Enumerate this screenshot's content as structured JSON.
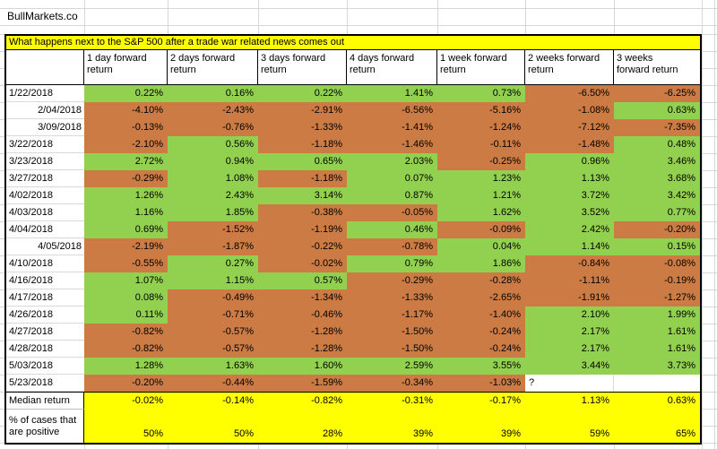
{
  "brand": "BullMarkets.co",
  "title": "What happens next to the S&P 500 after a trade war related news comes out",
  "colors": {
    "positive_green": "#92D050",
    "negative_orange": "#CB7B43",
    "highlight_yellow": "#FFFF00"
  },
  "table": {
    "columns": [
      "1 day forward\nreturn",
      "2 days forward\nreturn",
      "3 days forward\nreturn",
      "4 days forward\nreturn",
      "1 week forward\nreturn",
      "2 weeks forward\nreturn",
      "3 weeks\nforward return"
    ],
    "rows": [
      {
        "date": "1/22/2018",
        "align": "left",
        "values": [
          "0.22%",
          "0.16%",
          "0.22%",
          "1.41%",
          "0.73%",
          "-6.50%",
          "-6.25%"
        ],
        "colors": "GGGGGOO"
      },
      {
        "date": "2/04/2018",
        "align": "right",
        "values": [
          "-4.10%",
          "-2.43%",
          "-2.91%",
          "-6.56%",
          "-5.16%",
          "-1.08%",
          "0.63%"
        ],
        "colors": "OOOOOOG"
      },
      {
        "date": "3/09/2018",
        "align": "right",
        "values": [
          "-0.13%",
          "-0.76%",
          "-1.33%",
          "-1.41%",
          "-1.24%",
          "-7.12%",
          "-7.35%"
        ],
        "colors": "OOOOOOO"
      },
      {
        "date": "3/22/2018",
        "align": "left",
        "values": [
          "-2.10%",
          "0.56%",
          "-1.18%",
          "-1.46%",
          "-0.11%",
          "-1.48%",
          "0.48%"
        ],
        "colors": "OGOOOOG"
      },
      {
        "date": "3/23/2018",
        "align": "left",
        "values": [
          "2.72%",
          "0.94%",
          "0.65%",
          "2.03%",
          "-0.25%",
          "0.96%",
          "3.46%"
        ],
        "colors": "GGGGOGG"
      },
      {
        "date": "3/27/2018",
        "align": "left",
        "values": [
          "-0.29%",
          "1.08%",
          "-1.18%",
          "0.07%",
          "1.23%",
          "1.13%",
          "3.68%"
        ],
        "colors": "OGOGGGG"
      },
      {
        "date": "4/02/2018",
        "align": "left",
        "values": [
          "1.26%",
          "2.43%",
          "3.14%",
          "0.87%",
          "1.21%",
          "3.72%",
          "3.42%"
        ],
        "colors": "GGGGGGG"
      },
      {
        "date": "4/03/2018",
        "align": "left",
        "values": [
          "1.16%",
          "1.85%",
          "-0.38%",
          "-0.05%",
          "1.62%",
          "3.52%",
          "0.77%"
        ],
        "colors": "GGOOGGG"
      },
      {
        "date": "4/04/2018",
        "align": "left",
        "values": [
          "0.69%",
          "-1.52%",
          "-1.19%",
          "0.46%",
          "-0.09%",
          "2.42%",
          "-0.20%"
        ],
        "colors": "GOOGOGO"
      },
      {
        "date": "4/05/2018",
        "align": "right",
        "values": [
          "-2.19%",
          "-1.87%",
          "-0.22%",
          "-0.78%",
          "0.04%",
          "1.14%",
          "0.15%"
        ],
        "colors": "OOOOGGG"
      },
      {
        "date": "4/10/2018",
        "align": "left",
        "values": [
          "-0.55%",
          "0.27%",
          "-0.02%",
          "0.79%",
          "1.86%",
          "-0.84%",
          "-0.08%"
        ],
        "colors": "OGOGGOO"
      },
      {
        "date": "4/16/2018",
        "align": "left",
        "values": [
          "1.07%",
          "1.15%",
          "0.57%",
          "-0.29%",
          "-0.28%",
          "-1.11%",
          "-0.19%"
        ],
        "colors": "GGGOOOO"
      },
      {
        "date": "4/17/2018",
        "align": "left",
        "values": [
          "0.08%",
          "-0.49%",
          "-1.34%",
          "-1.33%",
          "-2.65%",
          "-1.91%",
          "-1.27%"
        ],
        "colors": "GOOOOOO"
      },
      {
        "date": "4/26/2018",
        "align": "left",
        "values": [
          "0.11%",
          "-0.71%",
          "-0.46%",
          "-1.17%",
          "-1.40%",
          "2.10%",
          "1.99%"
        ],
        "colors": "GOOOOGG"
      },
      {
        "date": "4/27/2018",
        "align": "left",
        "values": [
          "-0.82%",
          "-0.57%",
          "-1.28%",
          "-1.50%",
          "-0.24%",
          "2.17%",
          "1.61%"
        ],
        "colors": "OOOOOGG"
      },
      {
        "date": "4/28/2018",
        "align": "left",
        "values": [
          "-0.82%",
          "-0.57%",
          "-1.28%",
          "-1.50%",
          "-0.24%",
          "2.17%",
          "1.61%"
        ],
        "colors": "OOOOOGG"
      },
      {
        "date": "5/03/2018",
        "align": "left",
        "values": [
          "1.28%",
          "1.63%",
          "1.60%",
          "2.59%",
          "3.55%",
          "3.44%",
          "3.73%"
        ],
        "colors": "GGGGGGG"
      },
      {
        "date": "5/23/2018",
        "align": "left",
        "values": [
          "-0.20%",
          "-0.44%",
          "-1.59%",
          "-0.34%",
          "-1.03%",
          "?",
          ""
        ],
        "colors": "OOOOOWW"
      }
    ],
    "median": {
      "label": "Median return",
      "values": [
        "-0.02%",
        "-0.14%",
        "-0.82%",
        "-0.31%",
        "-0.17%",
        "1.13%",
        "0.63%"
      ]
    },
    "positive": {
      "label": "% of cases that\nare positive",
      "values": [
        "50%",
        "50%",
        "28%",
        "39%",
        "39%",
        "59%",
        "65%"
      ]
    }
  }
}
